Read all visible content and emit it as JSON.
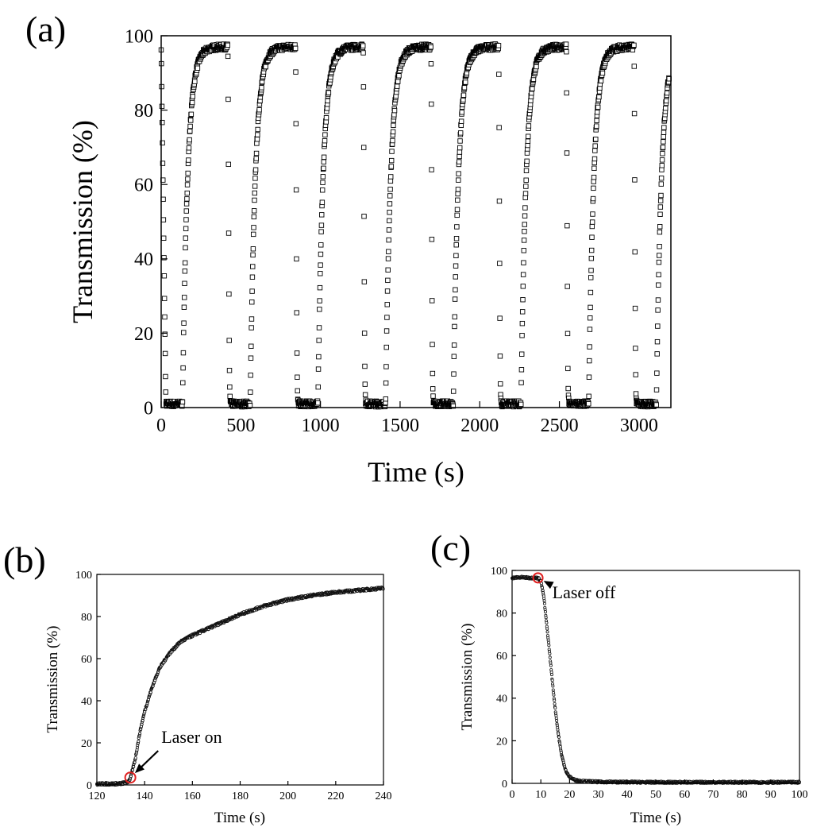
{
  "chart_data": [
    {
      "id": "a",
      "panel_label": "(a)",
      "type": "scatter",
      "marker": "open-square",
      "xlabel": "Time (s)",
      "ylabel": "Transmission (%)",
      "xlim": [
        0,
        3200
      ],
      "ylim": [
        0,
        100
      ],
      "xticks": [
        0,
        500,
        1000,
        1500,
        2000,
        2500,
        3000
      ],
      "yticks": [
        0,
        20,
        40,
        60,
        80,
        100
      ],
      "tick_labels_x": [
        "0",
        "500",
        "1000",
        "1500",
        "2000",
        "2500",
        "3000"
      ],
      "tick_labels_y": [
        "0",
        "20",
        "40",
        "60",
        "80",
        "100"
      ],
      "cycle": {
        "period_s": 425,
        "laser_on_offset_s": 134,
        "laser_off_offset_s": 418,
        "baseline_percent": 1,
        "plateau_percent": 97,
        "first_cycle_start_s": 0,
        "initial_value_percent": 97,
        "last_time_s": 3190
      }
    },
    {
      "id": "b",
      "panel_label": "(b)",
      "type": "scatter",
      "marker": "small-open-circle",
      "xlabel": "Time (s)",
      "ylabel": "Transmission (%)",
      "xlim": [
        120,
        240
      ],
      "ylim": [
        0,
        100
      ],
      "xticks": [
        120,
        140,
        160,
        180,
        200,
        220,
        240
      ],
      "yticks": [
        0,
        20,
        40,
        60,
        80,
        100
      ],
      "tick_labels_x": [
        "120",
        "140",
        "160",
        "180",
        "200",
        "220",
        "240"
      ],
      "tick_labels_y": [
        "0",
        "20",
        "40",
        "60",
        "80",
        "100"
      ],
      "points": [
        [
          120,
          0.5
        ],
        [
          125,
          0.5
        ],
        [
          130,
          0.6
        ],
        [
          133,
          1.5
        ],
        [
          134,
          3
        ],
        [
          136,
          12
        ],
        [
          138,
          25
        ],
        [
          140,
          35
        ],
        [
          143,
          46
        ],
        [
          146,
          55
        ],
        [
          150,
          62
        ],
        [
          155,
          68
        ],
        [
          160,
          71
        ],
        [
          170,
          76
        ],
        [
          180,
          81
        ],
        [
          190,
          85
        ],
        [
          200,
          88
        ],
        [
          210,
          90
        ],
        [
          220,
          91.5
        ],
        [
          230,
          92.5
        ],
        [
          240,
          93.5
        ]
      ],
      "highlight_point": [
        134,
        3.5
      ],
      "annotation": {
        "text": "Laser on",
        "target": [
          134,
          3.5
        ],
        "text_at": [
          147,
          20
        ]
      }
    },
    {
      "id": "c",
      "panel_label": "(c)",
      "type": "scatter",
      "marker": "small-open-circle",
      "xlabel": "Time (s)",
      "ylabel": "Transmission (%)",
      "xlim": [
        0,
        100
      ],
      "ylim": [
        0,
        100
      ],
      "xticks": [
        0,
        10,
        20,
        30,
        40,
        50,
        60,
        70,
        80,
        90,
        100
      ],
      "yticks": [
        0,
        20,
        40,
        60,
        80,
        100
      ],
      "tick_labels_x": [
        "0",
        "10",
        "20",
        "30",
        "40",
        "50",
        "60",
        "70",
        "80",
        "90",
        "100"
      ],
      "tick_labels_y": [
        "0",
        "20",
        "40",
        "60",
        "80",
        "100"
      ],
      "points": [
        [
          0,
          96.5
        ],
        [
          3,
          96.8
        ],
        [
          6,
          96.5
        ],
        [
          8,
          96.5
        ],
        [
          9,
          96.5
        ],
        [
          10,
          95
        ],
        [
          11,
          88
        ],
        [
          12,
          75
        ],
        [
          13,
          62
        ],
        [
          14,
          48
        ],
        [
          15,
          35
        ],
        [
          16,
          24
        ],
        [
          17,
          15
        ],
        [
          18,
          9
        ],
        [
          19,
          5
        ],
        [
          20,
          3
        ],
        [
          22,
          1.5
        ],
        [
          25,
          1
        ],
        [
          30,
          0.7
        ],
        [
          40,
          0.6
        ],
        [
          50,
          0.5
        ],
        [
          60,
          0.5
        ],
        [
          70,
          0.5
        ],
        [
          80,
          0.5
        ],
        [
          90,
          0.5
        ],
        [
          100,
          0.5
        ]
      ],
      "highlight_point": [
        9,
        96.5
      ],
      "annotation": {
        "text": "Laser off",
        "target": [
          9,
          96.5
        ],
        "text_at": [
          14,
          87
        ]
      }
    }
  ]
}
